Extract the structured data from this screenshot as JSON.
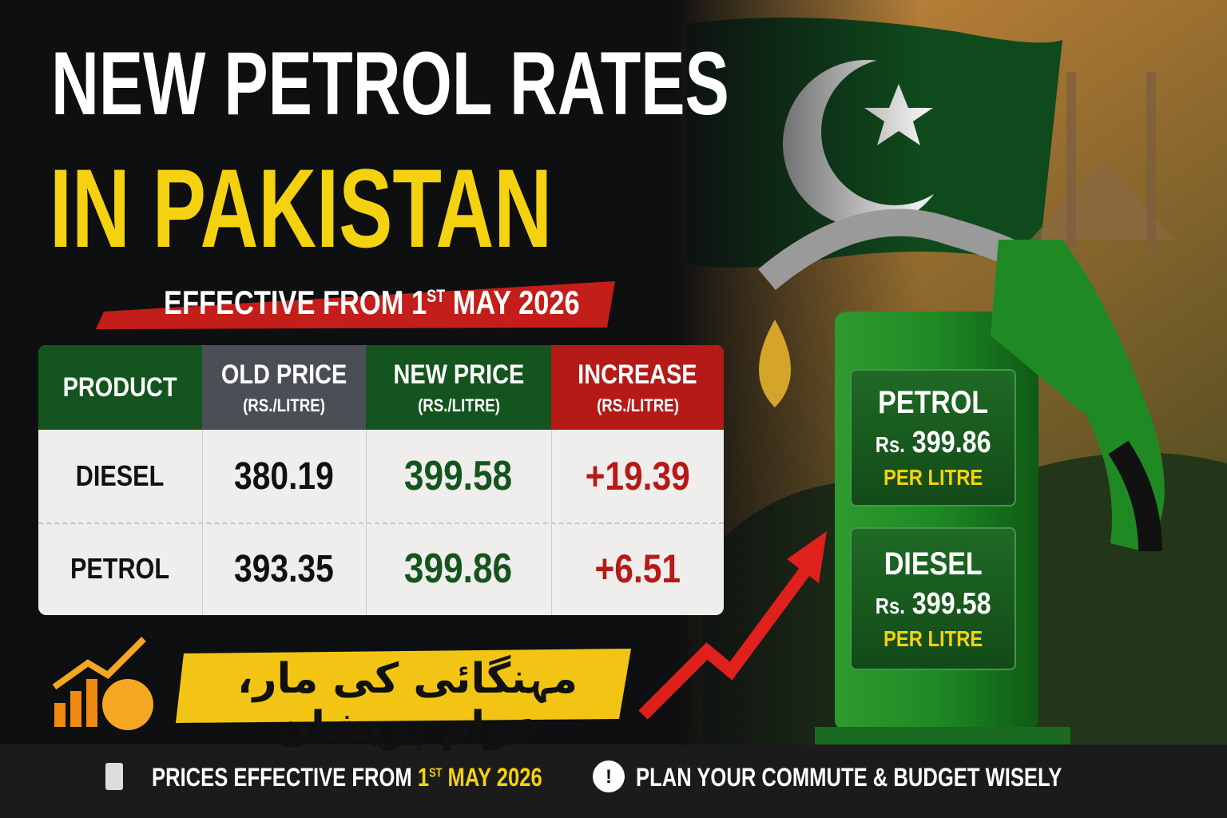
{
  "header": {
    "title_line1": "NEW PETROL RATES",
    "title_line2": "IN PAKISTAN",
    "effective": {
      "prefix": "EFFECTIVE FROM 1",
      "sup": "ST",
      "suffix": "MAY 2026"
    }
  },
  "table": {
    "headers": [
      {
        "title": "PRODUCT"
      },
      {
        "title": "OLD PRICE",
        "unit": "(RS./LITRE)"
      },
      {
        "title": "NEW PRICE",
        "unit": "(RS./LITRE)"
      },
      {
        "title": "INCREASE",
        "unit": "(RS./LITRE)"
      }
    ],
    "rows": [
      [
        "DIESEL",
        "380.19",
        "399.58",
        "+19.39"
      ],
      [
        "PETROL",
        "393.35",
        "399.86",
        "+6.51"
      ]
    ]
  },
  "slogan": "مہنگائی کی مار، عوام پریشان",
  "pump": [
    {
      "product": "PETROL",
      "currency": "Rs.",
      "price": "399.86",
      "unit": "PER LITRE"
    },
    {
      "product": "DIESEL",
      "currency": "Rs.",
      "price": "399.58",
      "unit": "PER LITRE"
    }
  ],
  "footer": {
    "left": {
      "prefix": "PRICES EFFECTIVE FROM ",
      "date_day": "1",
      "date_sup": "ST",
      "date_rest": "MAY 2026"
    },
    "right": "PLAN YOUR COMMUTE & BUDGET WISELY"
  }
}
